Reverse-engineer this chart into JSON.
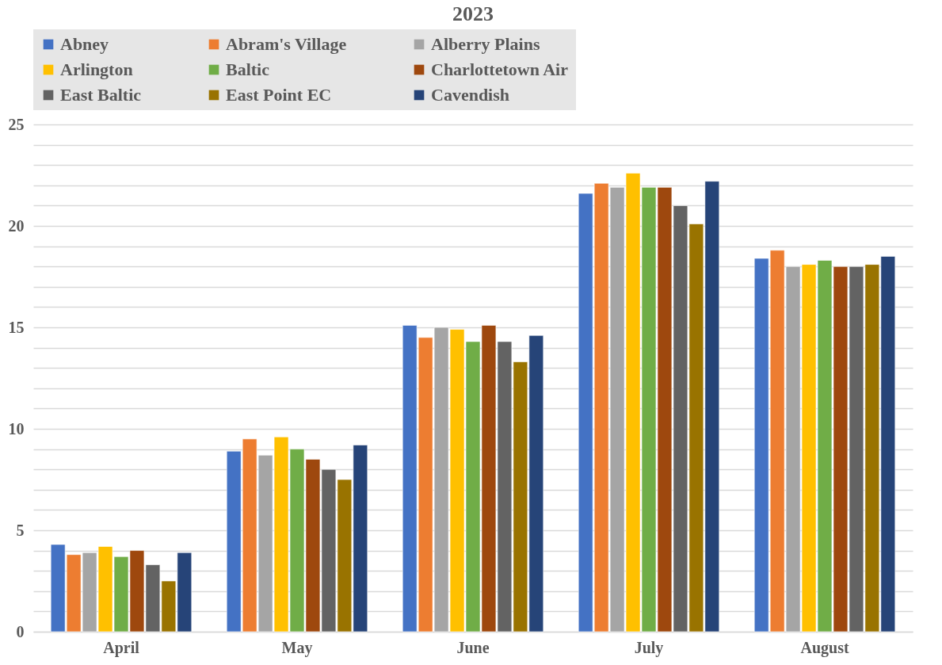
{
  "chart_data": {
    "type": "bar",
    "title": "2023",
    "categories": [
      "April",
      "May",
      "June",
      "July",
      "August"
    ],
    "series": [
      {
        "name": "Abney",
        "color": "#4472c4",
        "values": [
          4.3,
          8.9,
          15.1,
          21.6,
          18.4
        ]
      },
      {
        "name": "Abram's Village",
        "color": "#ed7d31",
        "values": [
          3.8,
          9.5,
          14.5,
          22.1,
          18.8
        ]
      },
      {
        "name": "Alberry Plains",
        "color": "#a5a5a5",
        "values": [
          3.9,
          8.7,
          15.0,
          21.9,
          18.0
        ]
      },
      {
        "name": "Arlington",
        "color": "#ffc000",
        "values": [
          4.2,
          9.6,
          14.9,
          22.6,
          18.1
        ]
      },
      {
        "name": "Baltic",
        "color": "#70ad47",
        "values": [
          3.7,
          9.0,
          14.3,
          21.9,
          18.3
        ]
      },
      {
        "name": "Charlottetown Air",
        "color": "#9e480e",
        "values": [
          4.0,
          8.5,
          15.1,
          21.9,
          18.0
        ]
      },
      {
        "name": "East Baltic",
        "color": "#636363",
        "values": [
          3.3,
          8.0,
          14.3,
          21.0,
          18.0
        ]
      },
      {
        "name": "East Point EC",
        "color": "#997300",
        "values": [
          2.5,
          7.5,
          13.3,
          20.1,
          18.1
        ]
      },
      {
        "name": "Cavendish",
        "color": "#264478",
        "values": [
          3.9,
          9.2,
          14.6,
          22.2,
          18.5
        ]
      }
    ],
    "ylim": [
      0,
      25
    ],
    "yticks": [
      0,
      {
        "value": 1,
        "label": null
      },
      {
        "value": 2,
        "label": null
      },
      {
        "value": 3,
        "label": null
      },
      {
        "value": 4,
        "label": null
      },
      5,
      {
        "value": 6,
        "label": null
      },
      {
        "value": 7,
        "label": null
      },
      {
        "value": 8,
        "label": null
      },
      {
        "value": 9,
        "label": null
      },
      10,
      {
        "value": 11,
        "label": null
      },
      {
        "value": 12,
        "label": null
      },
      {
        "value": 13,
        "label": null
      },
      {
        "value": 14,
        "label": null
      },
      15,
      {
        "value": 16,
        "label": null
      },
      {
        "value": 17,
        "label": null
      },
      {
        "value": 18,
        "label": null
      },
      {
        "value": 19,
        "label": null
      },
      20,
      {
        "value": 21,
        "label": null
      },
      {
        "value": 22,
        "label": null
      },
      {
        "value": 23,
        "label": null
      },
      {
        "value": 24,
        "label": null
      },
      25
    ],
    "grid": true,
    "legend": "top"
  }
}
